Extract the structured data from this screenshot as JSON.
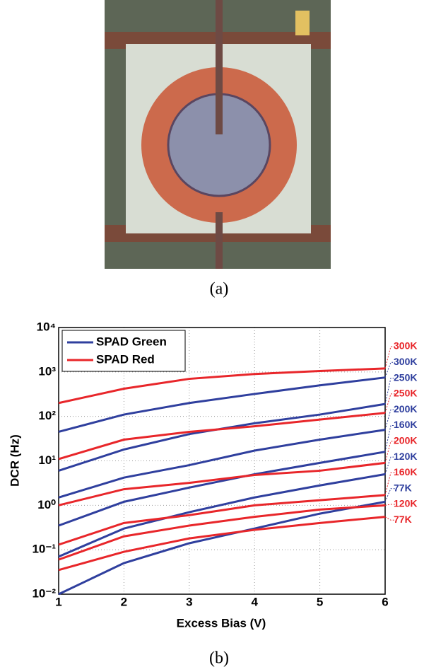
{
  "captions": [
    "(a)",
    "(b)"
  ],
  "chart_data": {
    "type": "line",
    "x_label": "Excess Bias (V)",
    "y_label": "DCR (Hz)",
    "x": [
      1,
      2,
      3,
      4,
      5,
      6
    ],
    "xlim": [
      1,
      6
    ],
    "xticks": [
      1,
      2,
      3,
      4,
      5,
      6
    ],
    "ylim": [
      0.01,
      10000
    ],
    "ylog": true,
    "yticks": [
      {
        "value": 0.01,
        "label": "10⁻²"
      },
      {
        "value": 0.1,
        "label": "10⁻¹"
      },
      {
        "value": 1,
        "label": "10⁰"
      },
      {
        "value": 10,
        "label": "10¹"
      },
      {
        "value": 100,
        "label": "10²"
      },
      {
        "value": 1000,
        "label": "10³"
      },
      {
        "value": 10000,
        "label": "10⁴"
      }
    ],
    "grid": true,
    "legend_position": "upper left",
    "legend": [
      {
        "name": "SPAD Green",
        "color": "#2f3f9e"
      },
      {
        "name": "SPAD Red",
        "color": "#e8262a"
      }
    ],
    "series": [
      {
        "label": "300K",
        "color": "#e8262a",
        "values": [
          200,
          420,
          700,
          900,
          1050,
          1200
        ]
      },
      {
        "label": "300K",
        "color": "#2f3f9e",
        "values": [
          45,
          110,
          200,
          320,
          500,
          750
        ]
      },
      {
        "label": "250K",
        "color": "#2f3f9e",
        "values": [
          6,
          18,
          40,
          70,
          110,
          190
        ]
      },
      {
        "label": "250K",
        "color": "#e8262a",
        "values": [
          11,
          30,
          45,
          60,
          85,
          120
        ]
      },
      {
        "label": "200K",
        "color": "#2f3f9e",
        "values": [
          1.5,
          4.2,
          8,
          17,
          30,
          50
        ]
      },
      {
        "label": "160K",
        "color": "#2f3f9e",
        "values": [
          0.35,
          1.2,
          2.5,
          5,
          9,
          16
        ]
      },
      {
        "label": "200K",
        "color": "#e8262a",
        "values": [
          1,
          2.3,
          3.2,
          4.8,
          6,
          9
        ]
      },
      {
        "label": "120K",
        "color": "#2f3f9e",
        "values": [
          0.07,
          0.3,
          0.7,
          1.5,
          2.8,
          5
        ]
      },
      {
        "label": "160K",
        "color": "#e8262a",
        "values": [
          0.13,
          0.4,
          0.6,
          1,
          1.3,
          1.7
        ]
      },
      {
        "label": "77K",
        "color": "#2f3f9e",
        "values": [
          0.01,
          0.05,
          0.14,
          0.3,
          0.65,
          1.2
        ]
      },
      {
        "label": "120K",
        "color": "#e8262a",
        "values": [
          0.06,
          0.2,
          0.35,
          0.55,
          0.8,
          1
        ]
      },
      {
        "label": "77K",
        "color": "#e8262a",
        "values": [
          0.035,
          0.09,
          0.18,
          0.28,
          0.4,
          0.55
        ]
      }
    ]
  }
}
